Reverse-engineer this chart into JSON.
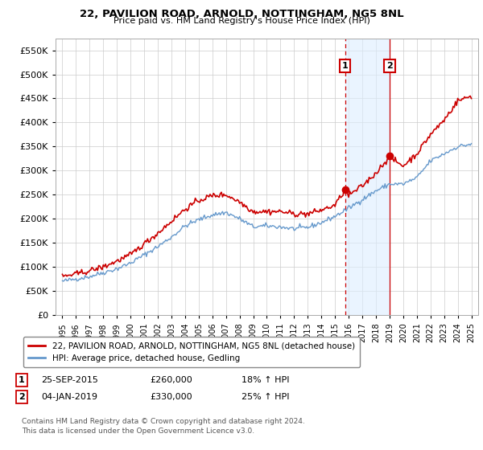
{
  "title": "22, PAVILION ROAD, ARNOLD, NOTTINGHAM, NG5 8NL",
  "subtitle": "Price paid vs. HM Land Registry's House Price Index (HPI)",
  "legend_line1": "22, PAVILION ROAD, ARNOLD, NOTTINGHAM, NG5 8NL (detached house)",
  "legend_line2": "HPI: Average price, detached house, Gedling",
  "annotation1_label": "1",
  "annotation1_date": "25-SEP-2015",
  "annotation1_price": "£260,000",
  "annotation1_hpi": "18% ↑ HPI",
  "annotation2_label": "2",
  "annotation2_date": "04-JAN-2019",
  "annotation2_price": "£330,000",
  "annotation2_hpi": "25% ↑ HPI",
  "footnote": "Contains HM Land Registry data © Crown copyright and database right 2024.\nThis data is licensed under the Open Government Licence v3.0.",
  "red_color": "#cc0000",
  "blue_color": "#6699cc",
  "shade_color": "#ddeeff",
  "marker_color": "#cc0000",
  "vline1_color": "#cc0000",
  "vline2_color": "#cc0000",
  "grid_color": "#cccccc",
  "bg_color": "#ffffff",
  "ylim_min": 0,
  "ylim_max": 575000,
  "purchase1_year": 2015.73,
  "purchase1_price": 260000,
  "purchase2_year": 2019.01,
  "purchase2_price": 330000,
  "xlim_min": 1994.5,
  "xlim_max": 2025.5
}
